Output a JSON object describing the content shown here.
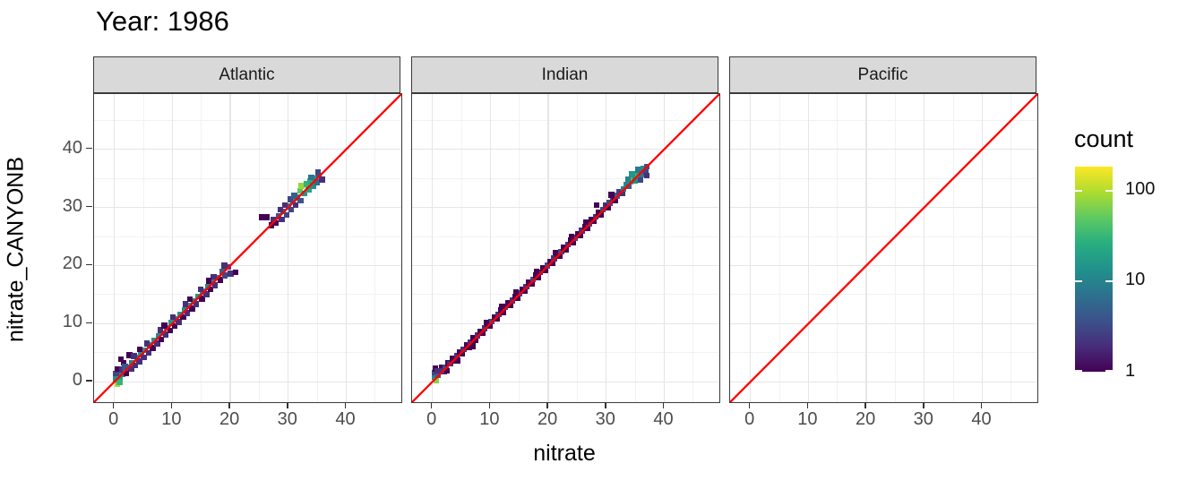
{
  "colors": {
    "reference_line": "#ff0000",
    "strip_background": "#d9d9d9",
    "panel_border": "#3b3b3b",
    "grid_major": "#e6e6e6",
    "grid_minor": "#f2f2f2",
    "axis_text": "#4d4d4d",
    "tick_mark": "#333333",
    "viridis_stops": [
      "#440154",
      "#472d7b",
      "#3b528b",
      "#2c728e",
      "#21918c",
      "#28ae80",
      "#5ec962",
      "#addc30",
      "#fde725"
    ]
  },
  "chart_data": {
    "type": "heatmap",
    "subtype": "bin2d",
    "title": "Year: 1986",
    "xlabel": "nitrate",
    "ylabel": "nitrate_CANYONB",
    "xlim": [
      -3.5,
      49.5
    ],
    "ylim": [
      -3.5,
      49.5
    ],
    "x_ticks": [
      0,
      10,
      20,
      30,
      40
    ],
    "y_ticks": [
      0,
      10,
      20,
      30,
      40
    ],
    "minor_gridlines": [
      5,
      15,
      25,
      35,
      45
    ],
    "grid": "on",
    "bin_width": 1,
    "reference_line": {
      "type": "identity y=x",
      "color": "#ff0000"
    },
    "legend": {
      "title": "count",
      "ticks": [
        100,
        10,
        1
      ],
      "domain": [
        1,
        180
      ],
      "scale": "log10",
      "position": "right"
    },
    "facets": [
      {
        "label": "Atlantic",
        "bins": [
          [
            0.5,
            -0.4,
            90
          ],
          [
            0.3,
            0.4,
            12
          ],
          [
            0.9,
            0.9,
            18
          ],
          [
            1.4,
            1.3,
            10
          ],
          [
            0.3,
            1.4,
            3
          ],
          [
            0.6,
            2.2,
            1
          ],
          [
            1.3,
            2.1,
            2
          ],
          [
            1.9,
            1.8,
            12
          ],
          [
            2.3,
            2.5,
            8
          ],
          [
            1.6,
            3.3,
            1
          ],
          [
            2.6,
            4.6,
            1
          ],
          [
            1.1,
            3.9,
            1
          ],
          [
            2.9,
            2.2,
            2
          ],
          [
            3.1,
            3.2,
            10
          ],
          [
            3.6,
            2.8,
            2
          ],
          [
            3.9,
            4.1,
            10
          ],
          [
            4.3,
            3.5,
            2
          ],
          [
            4.6,
            4.7,
            12
          ],
          [
            5.1,
            4.2,
            2
          ],
          [
            5.3,
            5.4,
            15
          ],
          [
            5.9,
            5.0,
            2
          ],
          [
            6.1,
            6.3,
            12
          ],
          [
            6.6,
            5.8,
            1
          ],
          [
            6.9,
            7.1,
            15
          ],
          [
            7.4,
            6.6,
            2
          ],
          [
            7.6,
            7.8,
            12
          ],
          [
            8.1,
            7.3,
            1
          ],
          [
            8.3,
            8.4,
            15
          ],
          [
            8.9,
            8.1,
            2
          ],
          [
            9.1,
            9.3,
            12
          ],
          [
            9.6,
            8.8,
            1
          ],
          [
            9.9,
            10.1,
            15
          ],
          [
            10.4,
            9.6,
            1
          ],
          [
            10.6,
            10.8,
            12
          ],
          [
            11.1,
            10.3,
            2
          ],
          [
            11.4,
            11.6,
            15
          ],
          [
            11.9,
            11.1,
            1
          ],
          [
            12.1,
            12.3,
            12
          ],
          [
            12.6,
            11.8,
            2
          ],
          [
            12.9,
            13.1,
            15
          ],
          [
            13.4,
            12.6,
            1
          ],
          [
            13.7,
            13.9,
            12
          ],
          [
            14.1,
            13.4,
            2
          ],
          [
            14.5,
            14.7,
            15
          ],
          [
            15.1,
            14.3,
            1
          ],
          [
            15.3,
            15.5,
            12
          ],
          [
            15.9,
            15.1,
            2
          ],
          [
            16.1,
            16.3,
            10
          ],
          [
            16.6,
            15.9,
            1
          ],
          [
            16.9,
            17.1,
            10
          ],
          [
            17.4,
            16.6,
            2
          ],
          [
            17.7,
            17.9,
            8
          ],
          [
            18.3,
            17.5,
            1
          ],
          [
            18.6,
            18.9,
            5
          ],
          [
            19.1,
            18.3,
            3
          ],
          [
            19.6,
            19.8,
            3
          ],
          [
            20.1,
            18.6,
            2
          ],
          [
            20.9,
            18.8,
            1
          ],
          [
            19.0,
            20.0,
            2
          ],
          [
            17.1,
            18.1,
            2
          ],
          [
            14.9,
            15.9,
            2
          ],
          [
            12.3,
            13.4,
            2
          ],
          [
            10.1,
            11.1,
            2
          ],
          [
            7.9,
            8.9,
            2
          ],
          [
            5.6,
            6.6,
            2
          ],
          [
            3.4,
            4.4,
            2
          ],
          [
            4.4,
            5.6,
            1
          ],
          [
            8.6,
            9.7,
            1
          ],
          [
            13.0,
            14.2,
            1
          ],
          [
            16.3,
            17.4,
            1
          ],
          [
            0.9,
            -0.1,
            30
          ],
          [
            1.8,
            2.6,
            4
          ],
          [
            2.1,
            1.4,
            1
          ],
          [
            25.4,
            28.3,
            1
          ],
          [
            26.3,
            28.3,
            1
          ],
          [
            27.1,
            26.9,
            1
          ],
          [
            27.4,
            27.9,
            2
          ],
          [
            27.9,
            27.3,
            1
          ],
          [
            28.3,
            28.5,
            4
          ],
          [
            28.9,
            27.9,
            2
          ],
          [
            29.1,
            29.3,
            6
          ],
          [
            29.7,
            28.7,
            3
          ],
          [
            30.0,
            30.2,
            8
          ],
          [
            30.5,
            29.6,
            3
          ],
          [
            30.8,
            31.0,
            10
          ],
          [
            31.3,
            30.4,
            2
          ],
          [
            31.5,
            31.7,
            12
          ],
          [
            32.1,
            31.2,
            4
          ],
          [
            32.0,
            32.9,
            45
          ],
          [
            32.3,
            33.7,
            80
          ],
          [
            32.8,
            32.4,
            15
          ],
          [
            33.1,
            34.0,
            30
          ],
          [
            33.5,
            33.0,
            20
          ],
          [
            33.8,
            34.5,
            25
          ],
          [
            34.3,
            33.7,
            12
          ],
          [
            34.5,
            35.0,
            15
          ],
          [
            35.0,
            34.3,
            6
          ],
          [
            35.3,
            35.5,
            4
          ],
          [
            35.8,
            34.8,
            2
          ],
          [
            28.6,
            29.6,
            2
          ],
          [
            30.3,
            31.4,
            3
          ],
          [
            34.0,
            35.2,
            8
          ],
          [
            35.1,
            36.0,
            3
          ],
          [
            29.4,
            30.4,
            2
          ],
          [
            31.0,
            32.0,
            5
          ]
        ]
      },
      {
        "label": "Indian",
        "bins": [
          [
            0.4,
            0.9,
            10
          ],
          [
            0.4,
            1.6,
            3
          ],
          [
            0.7,
            0.2,
            70
          ],
          [
            1.0,
            1.1,
            5
          ],
          [
            1.3,
            1.9,
            2
          ],
          [
            0.5,
            2.3,
            1
          ],
          [
            1.7,
            2.5,
            1
          ],
          [
            2.0,
            1.8,
            2
          ],
          [
            2.3,
            2.5,
            3
          ],
          [
            2.7,
            3.2,
            1
          ],
          [
            3.1,
            3.1,
            2
          ],
          [
            3.5,
            4.0,
            1
          ],
          [
            3.9,
            3.6,
            1
          ],
          [
            4.2,
            4.4,
            2
          ],
          [
            4.7,
            5.1,
            1
          ],
          [
            5.1,
            4.8,
            1
          ],
          [
            5.4,
            5.6,
            2
          ],
          [
            5.9,
            6.3,
            1
          ],
          [
            6.3,
            6.0,
            1
          ],
          [
            6.6,
            6.8,
            2
          ],
          [
            7.1,
            7.5,
            1
          ],
          [
            7.5,
            7.2,
            1
          ],
          [
            7.8,
            8.0,
            2
          ],
          [
            8.3,
            8.7,
            1
          ],
          [
            8.7,
            8.4,
            1
          ],
          [
            9.0,
            9.2,
            2
          ],
          [
            9.5,
            9.9,
            1
          ],
          [
            9.9,
            9.6,
            1
          ],
          [
            10.2,
            10.4,
            3
          ],
          [
            10.7,
            11.1,
            1
          ],
          [
            11.1,
            10.8,
            1
          ],
          [
            11.4,
            11.6,
            2
          ],
          [
            11.9,
            12.3,
            1
          ],
          [
            12.3,
            12.0,
            1
          ],
          [
            12.6,
            12.8,
            3
          ],
          [
            13.1,
            13.5,
            1
          ],
          [
            13.5,
            13.2,
            1
          ],
          [
            13.8,
            14.0,
            2
          ],
          [
            14.3,
            14.7,
            1
          ],
          [
            14.7,
            14.4,
            1
          ],
          [
            15.0,
            15.2,
            3
          ],
          [
            15.5,
            15.9,
            1
          ],
          [
            15.9,
            15.6,
            1
          ],
          [
            16.2,
            16.4,
            2
          ],
          [
            16.7,
            17.1,
            1
          ],
          [
            17.1,
            16.8,
            1
          ],
          [
            17.4,
            17.6,
            3
          ],
          [
            17.9,
            18.3,
            1
          ],
          [
            18.3,
            18.0,
            1
          ],
          [
            18.6,
            18.8,
            2
          ],
          [
            19.1,
            19.5,
            1
          ],
          [
            19.5,
            19.2,
            1
          ],
          [
            19.8,
            20.0,
            3
          ],
          [
            20.3,
            20.7,
            1
          ],
          [
            20.7,
            20.4,
            1
          ],
          [
            21.0,
            21.2,
            2
          ],
          [
            21.5,
            21.9,
            1
          ],
          [
            21.9,
            21.6,
            1
          ],
          [
            22.2,
            22.4,
            3
          ],
          [
            22.7,
            23.1,
            1
          ],
          [
            23.1,
            22.8,
            1
          ],
          [
            23.4,
            23.6,
            2
          ],
          [
            23.9,
            24.3,
            1
          ],
          [
            24.3,
            24.0,
            1
          ],
          [
            24.6,
            24.8,
            3
          ],
          [
            25.1,
            25.5,
            1
          ],
          [
            25.5,
            25.2,
            1
          ],
          [
            25.8,
            26.0,
            2
          ],
          [
            26.3,
            26.7,
            1
          ],
          [
            26.7,
            26.4,
            1
          ],
          [
            27.0,
            27.2,
            3
          ],
          [
            27.5,
            27.9,
            1
          ],
          [
            27.9,
            27.6,
            1
          ],
          [
            28.2,
            28.4,
            2
          ],
          [
            28.3,
            30.4,
            1
          ],
          [
            28.7,
            29.1,
            1
          ],
          [
            29.1,
            28.8,
            1
          ],
          [
            29.4,
            29.6,
            3
          ],
          [
            29.9,
            30.3,
            2
          ],
          [
            30.3,
            30.0,
            1
          ],
          [
            30.6,
            30.8,
            3
          ],
          [
            31.1,
            31.5,
            2
          ],
          [
            31.5,
            31.2,
            1
          ],
          [
            31.8,
            32.0,
            5
          ],
          [
            32.3,
            32.7,
            3
          ],
          [
            32.7,
            32.4,
            2
          ],
          [
            33.0,
            33.2,
            8
          ],
          [
            33.5,
            33.9,
            12
          ],
          [
            33.9,
            33.6,
            5
          ],
          [
            34.2,
            34.4,
            25
          ],
          [
            34.6,
            35.0,
            35
          ],
          [
            35.0,
            34.6,
            12
          ],
          [
            35.3,
            35.5,
            30
          ],
          [
            35.7,
            36.1,
            20
          ],
          [
            36.1,
            35.7,
            8
          ],
          [
            36.4,
            36.6,
            12
          ],
          [
            36.8,
            36.2,
            3
          ],
          [
            37.0,
            37.0,
            4
          ],
          [
            34.4,
            35.7,
            15
          ],
          [
            35.4,
            36.5,
            8
          ],
          [
            37.0,
            35.5,
            2
          ],
          [
            33.7,
            34.8,
            10
          ],
          [
            35.9,
            34.7,
            3
          ],
          [
            0.9,
            1.9,
            2
          ],
          [
            2.5,
            1.9,
            1
          ],
          [
            4.4,
            3.7,
            1
          ],
          [
            6.9,
            6.1,
            1
          ],
          [
            9.3,
            10.2,
            1
          ],
          [
            12.0,
            13.0,
            1
          ],
          [
            14.4,
            15.4,
            1
          ],
          [
            18.0,
            19.0,
            1
          ],
          [
            21.2,
            22.2,
            1
          ],
          [
            24.0,
            25.0,
            1
          ],
          [
            26.5,
            27.5,
            1
          ],
          [
            30.9,
            32.2,
            1
          ]
        ]
      },
      {
        "label": "Pacific",
        "bins": []
      }
    ]
  }
}
